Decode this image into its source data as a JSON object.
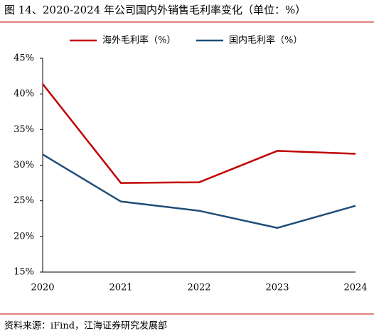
{
  "chart_data": {
    "type": "line",
    "title": "图 14、2020-2024 年公司国内外销售毛利率变化（单位：%）",
    "source": "资料来源：iFind，江海证券研究发展部",
    "categories": [
      "2020",
      "2021",
      "2022",
      "2023",
      "2024"
    ],
    "series": [
      {
        "name": "海外毛利率（%）",
        "color": "#c00000",
        "values": [
          41.4,
          27.5,
          27.6,
          32.0,
          31.6
        ]
      },
      {
        "name": "国内毛利率（%）",
        "color": "#1f4e79",
        "values": [
          31.5,
          24.9,
          23.6,
          21.2,
          24.3
        ]
      }
    ],
    "ylim": [
      15,
      45
    ],
    "yticks": [
      {
        "value": 15,
        "label": "15%"
      },
      {
        "value": 20,
        "label": "20%"
      },
      {
        "value": 25,
        "label": "25%"
      },
      {
        "value": 30,
        "label": "30%"
      },
      {
        "value": 35,
        "label": "35%"
      },
      {
        "value": 40,
        "label": "40%"
      },
      {
        "value": 45,
        "label": "45%"
      }
    ],
    "grid": false,
    "legend": "top"
  }
}
